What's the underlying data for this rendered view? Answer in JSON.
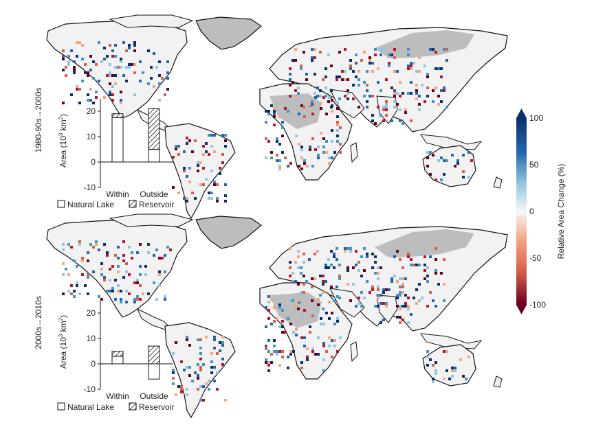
{
  "colors": {
    "positive_max": "#08306b",
    "neutral": "#f2f2f2",
    "negative_max": "#67000d",
    "no_data": "#bdbdbd",
    "coastline": "#111111"
  },
  "panels": [
    {
      "row_label": "1980-90s→2000s",
      "chart_data": {
        "type": "bar",
        "subtype": "stacked",
        "categories": [
          "Within",
          "Outside"
        ],
        "ylabel": "Area (10",
        "ylabel_exp": "3",
        "ylabel_unit": " km",
        "ylabel_exp2": "2",
        "ylabel_close": ")",
        "ylim": [
          -10,
          25
        ],
        "yticks": [
          "-10",
          "0",
          "10",
          "20"
        ],
        "ytick_values": [
          -10,
          0,
          10,
          20
        ],
        "series": [
          {
            "name": "Natural Lake",
            "values": [
              17.5,
              5
            ]
          },
          {
            "name": "Reservoir",
            "values": [
              1.5,
              16
            ]
          }
        ]
      },
      "legend": [
        "Natural Lake",
        "Reservoir"
      ]
    },
    {
      "row_label": "2000s→2010s",
      "chart_data": {
        "type": "bar",
        "subtype": "stacked",
        "categories": [
          "Within",
          "Outside"
        ],
        "ylabel": "Area (10",
        "ylabel_exp": "3",
        "ylabel_unit": " km",
        "ylabel_exp2": "2",
        "ylabel_close": ")",
        "ylim": [
          -10,
          25
        ],
        "yticks": [
          "-10",
          "0",
          "10",
          "20"
        ],
        "ytick_values": [
          -10,
          0,
          10,
          20
        ],
        "series": [
          {
            "name": "Natural Lake",
            "values": [
              3,
              -6
            ]
          },
          {
            "name": "Reservoir",
            "values": [
              2,
              7
            ]
          }
        ]
      },
      "legend": [
        "Natural Lake",
        "Reservoir"
      ]
    }
  ],
  "colorbar": {
    "label": "Relative Area Change (%)",
    "ticks": [
      "100",
      "50",
      "0",
      "-50",
      "-100"
    ],
    "tick_values": [
      100,
      50,
      0,
      -50,
      -100
    ]
  }
}
